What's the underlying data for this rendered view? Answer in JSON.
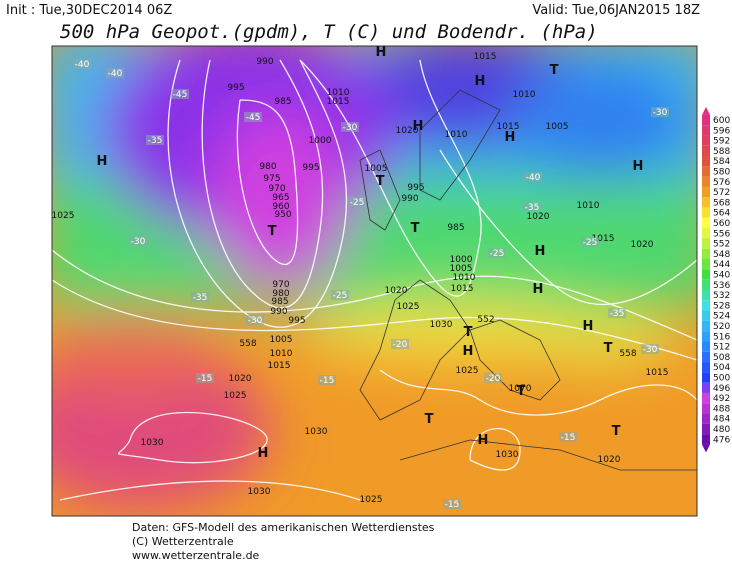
{
  "header": {
    "init": "Init : Tue,30DEC2014 06Z",
    "valid": "Valid: Tue,06JAN2015 18Z",
    "title": "500 hPa Geopot.(gpdm), T (C) und Bodendr. (hPa)"
  },
  "legend": {
    "levels": [
      600,
      596,
      592,
      588,
      584,
      580,
      576,
      572,
      568,
      564,
      560,
      556,
      552,
      548,
      544,
      540,
      536,
      532,
      528,
      524,
      520,
      516,
      512,
      508,
      504,
      500,
      496,
      492,
      488,
      484,
      480,
      476
    ]
  },
  "map": {
    "isobars": [
      "990",
      "995",
      "985",
      "980",
      "975",
      "970",
      "965",
      "960",
      "950",
      "1000",
      "995",
      "1010",
      "1015",
      "1020",
      "1015",
      "1010",
      "1015",
      "1005",
      "1010",
      "1005",
      "995",
      "990",
      "985",
      "1000",
      "1005",
      "1010",
      "1015",
      "1020",
      "1025",
      "1030",
      "1025",
      "1020",
      "1015",
      "1010",
      "1020",
      "1025",
      "970",
      "980",
      "985",
      "990",
      "995",
      "1005",
      "1010",
      "1015",
      "1020",
      "1025",
      "1030",
      "1030",
      "1030",
      "1025",
      "1070",
      "1030",
      "1020",
      "1015",
      "558",
      "552",
      "558"
    ],
    "centers": [
      "H",
      "H",
      "H",
      "H",
      "H",
      "H",
      "H",
      "H",
      "H",
      "H",
      "H",
      "H",
      "T",
      "T",
      "T",
      "T",
      "T",
      "T",
      "T",
      "T",
      "T"
    ],
    "temperatures": [
      "-40",
      "-40",
      "-45",
      "-45",
      "-35",
      "-30",
      "-35",
      "-30",
      "-15",
      "-20",
      "-15",
      "-20",
      "-25",
      "-30",
      "-25",
      "-35",
      "-40",
      "-30",
      "-15",
      "-15",
      "-35",
      "-30",
      "-25",
      "-25"
    ]
  },
  "footer": {
    "line1": "Daten: GFS-Modell des amerikanischen Wetterdienstes",
    "line2": "(C) Wetterzentrale",
    "line3": "www.wetterzentrale.de"
  }
}
